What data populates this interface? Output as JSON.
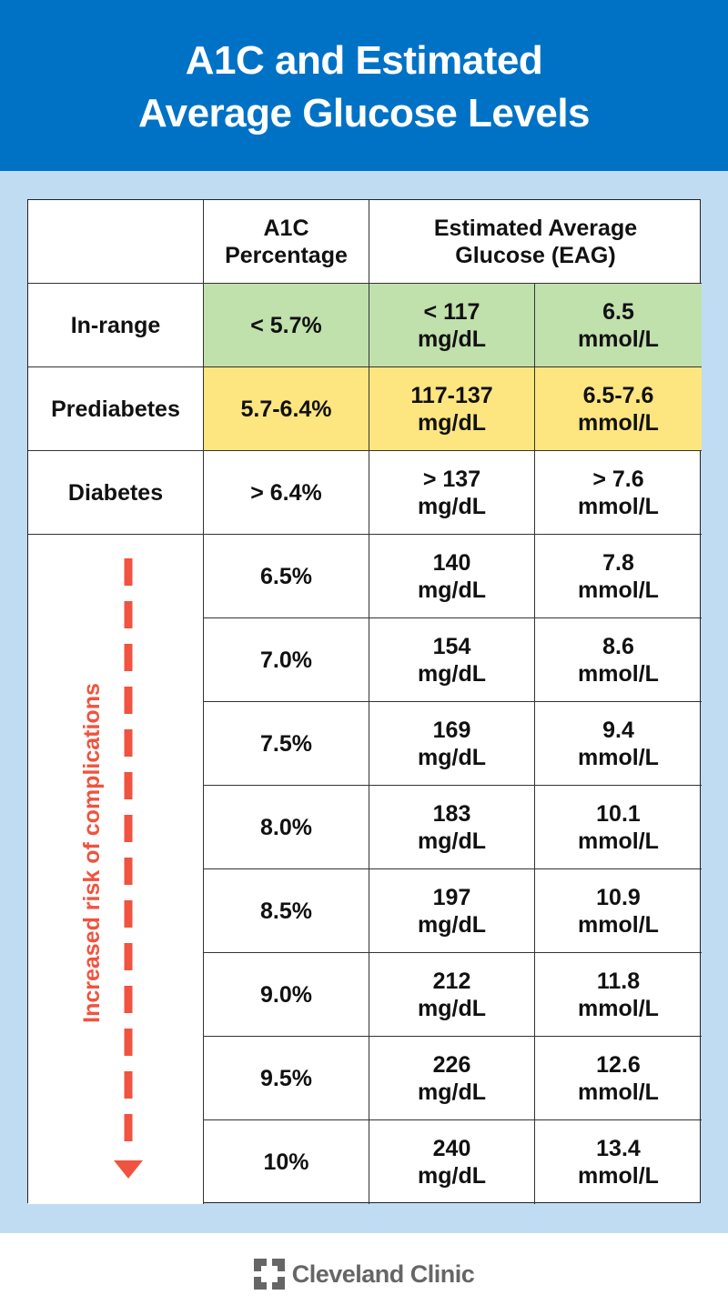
{
  "title": {
    "line1": "A1C and Estimated",
    "line2": "Average Glucose Levels"
  },
  "table": {
    "headers": {
      "a1c": "A1C Percentage",
      "eag": "Estimated Average Glucose (EAG)"
    },
    "category_rows": [
      {
        "label": "In-range",
        "a1c": "< 5.7%",
        "mgdl": "< 117",
        "mmol": "6.5",
        "color": "#c0e0ac"
      },
      {
        "label": "Prediabetes",
        "a1c": "5.7-6.4%",
        "mgdl": "117-137",
        "mmol": "6.5-7.6",
        "color": "#fde580"
      },
      {
        "label": "Diabetes",
        "a1c": "> 6.4%",
        "mgdl": "> 137",
        "mmol": "> 7.6",
        "color": "#f9a8a1"
      }
    ],
    "units": {
      "mgdl": "mg/dL",
      "mmol": "mmol/L"
    },
    "risk_label": "Increased risk of complications",
    "risk_color": "#f0533f",
    "value_rows": [
      {
        "a1c": "6.5%",
        "mgdl": "140",
        "mmol": "7.8"
      },
      {
        "a1c": "7.0%",
        "mgdl": "154",
        "mmol": "8.6"
      },
      {
        "a1c": "7.5%",
        "mgdl": "169",
        "mmol": "9.4"
      },
      {
        "a1c": "8.0%",
        "mgdl": "183",
        "mmol": "10.1"
      },
      {
        "a1c": "8.5%",
        "mgdl": "197",
        "mmol": "10.9"
      },
      {
        "a1c": "9.0%",
        "mgdl": "212",
        "mmol": "11.8"
      },
      {
        "a1c": "9.5%",
        "mgdl": "226",
        "mmol": "12.6"
      },
      {
        "a1c": "10%",
        "mgdl": "240",
        "mmol": "13.4"
      }
    ]
  },
  "footer": {
    "brand": "Cleveland Clinic"
  }
}
